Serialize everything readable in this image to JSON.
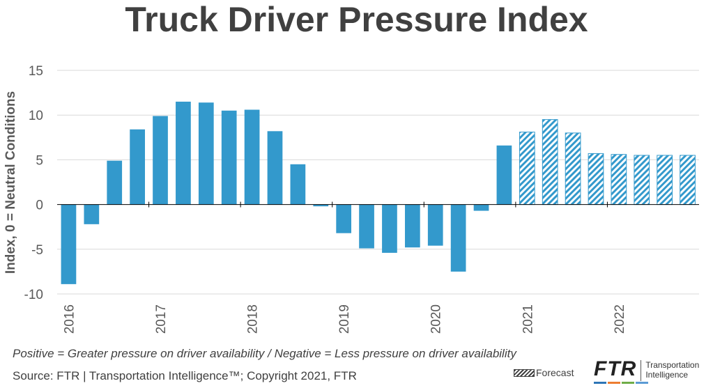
{
  "title": "Truck Driver Pressure Index",
  "caption": "Positive = Greater pressure on driver availability / Negative = Less pressure on driver availability",
  "source": "Source: FTR | Transportation Intelligence™; Copyright 2021, FTR",
  "legend": {
    "forecast_label": "Forecast"
  },
  "logo": {
    "mark": "FTR",
    "line1": "Transportation",
    "line2": "Intelligence",
    "stripe_colors": [
      "#2e75b6",
      "#ed7d31",
      "#70ad47",
      "#5b9bd5"
    ]
  },
  "colors": {
    "bar": "#3399cc",
    "grid": "#d9d9d9",
    "axis": "#bfbfbf",
    "text": "#595959"
  },
  "chart_data": {
    "type": "bar",
    "ylabel": "Index, 0 = Neutral Conditions",
    "xlabel": "",
    "ylim": [
      -10,
      15
    ],
    "yticks": [
      15,
      10,
      5,
      0,
      -5,
      -10
    ],
    "grid": true,
    "year_labels": [
      "2016",
      "2017",
      "2018",
      "2019",
      "2020",
      "2021",
      "2022"
    ],
    "quarters_per_year": 4,
    "values": [
      -8.9,
      -2.2,
      4.9,
      8.4,
      9.9,
      11.5,
      11.4,
      10.5,
      10.6,
      8.2,
      4.5,
      -0.2,
      -3.2,
      -4.9,
      -5.4,
      -4.8,
      -4.6,
      -7.5,
      -0.7,
      6.6,
      8.1,
      9.5,
      8.0,
      5.7,
      5.6,
      5.5,
      5.5,
      5.5
    ],
    "forecast": [
      false,
      false,
      false,
      false,
      false,
      false,
      false,
      false,
      false,
      false,
      false,
      false,
      false,
      false,
      false,
      false,
      false,
      false,
      false,
      false,
      true,
      true,
      true,
      true,
      true,
      true,
      true,
      true
    ]
  }
}
